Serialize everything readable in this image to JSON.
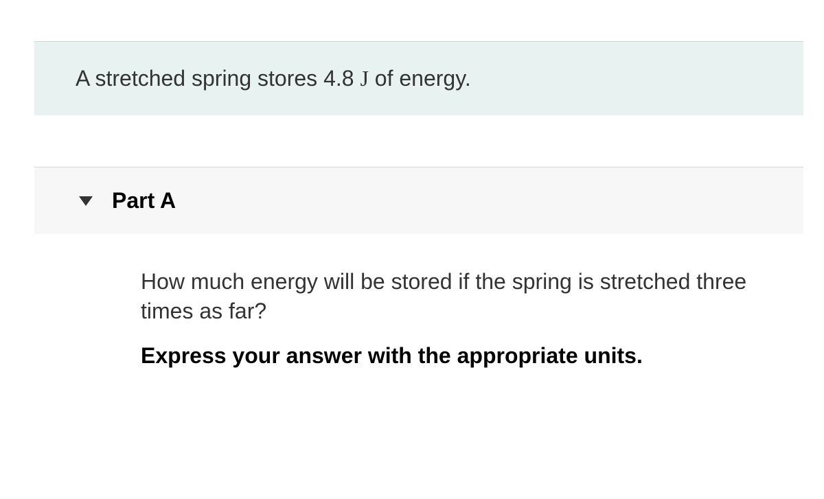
{
  "problem": {
    "text_before": "A stretched spring stores 4.8 ",
    "unit": "J",
    "text_after": " of energy."
  },
  "part": {
    "label": "Part A",
    "question": "How much energy will be stored if the spring is stretched three times as far?",
    "instruction": "Express your answer with the appropriate units."
  },
  "colors": {
    "statement_bg": "#e8f2f0",
    "header_bg": "#f7f7f7",
    "text": "#333333",
    "border": "#d8d8d8"
  }
}
